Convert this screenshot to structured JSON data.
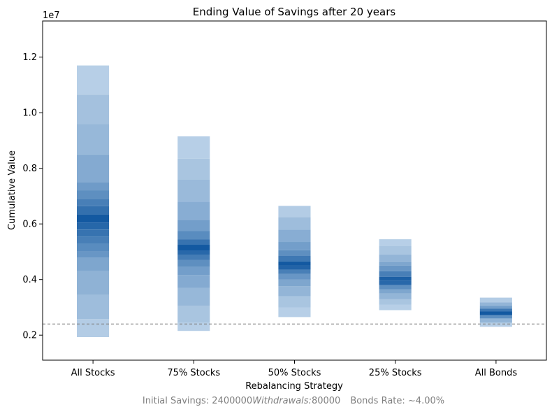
{
  "chart_data": {
    "type": "bar",
    "title": "Ending Value of Savings after 20 years",
    "xlabel": "Rebalancing Strategy",
    "ylabel": "Cumulative Value",
    "y_offset_label": "1e7",
    "ylim": [
      1.1,
      13.3
    ],
    "y_scale_factor": 10000000,
    "yticks": [
      0.2,
      0.4,
      0.6,
      0.8,
      1.0,
      1.2
    ],
    "ytick_labels": [
      "0.2",
      "0.4",
      "0.6",
      "0.8",
      "1.0",
      "1.2"
    ],
    "categories": [
      "All Stocks",
      "75% Stocks",
      "50% Stocks",
      "25% Stocks",
      "All Bonds"
    ],
    "reference_line": {
      "value": 2.4,
      "style": "dashed",
      "color": "#808080"
    },
    "footer": {
      "part1": "Initial Savings: 2400000",
      "part2": "Withdrawals:",
      "part3": "80000",
      "part4": "Bonds Rate: ~4.00%"
    },
    "series": [
      {
        "bands": [
          [
            1.93,
            2.58,
            0.2
          ],
          [
            2.58,
            3.45,
            0.3
          ],
          [
            3.45,
            4.3,
            0.37
          ],
          [
            4.3,
            4.8,
            0.45
          ],
          [
            4.8,
            5.0,
            0.55
          ],
          [
            5.0,
            5.3,
            0.62
          ],
          [
            5.3,
            5.55,
            0.7
          ],
          [
            5.55,
            5.8,
            0.78
          ],
          [
            5.8,
            6.05,
            0.86
          ],
          [
            6.05,
            6.35,
            0.95
          ],
          [
            6.35,
            6.65,
            0.8
          ],
          [
            6.65,
            6.9,
            0.7
          ],
          [
            6.9,
            7.2,
            0.6
          ],
          [
            7.2,
            7.5,
            0.52
          ],
          [
            7.5,
            8.5,
            0.42
          ],
          [
            8.5,
            9.6,
            0.33
          ],
          [
            9.6,
            10.65,
            0.27
          ],
          [
            10.65,
            11.7,
            0.18
          ]
        ]
      },
      {
        "bands": [
          [
            2.15,
            2.45,
            0.18
          ],
          [
            2.45,
            3.05,
            0.25
          ],
          [
            3.05,
            3.7,
            0.33
          ],
          [
            3.7,
            4.15,
            0.42
          ],
          [
            4.15,
            4.45,
            0.5
          ],
          [
            4.45,
            4.7,
            0.6
          ],
          [
            4.7,
            4.9,
            0.72
          ],
          [
            4.9,
            5.05,
            0.85
          ],
          [
            5.05,
            5.25,
            0.95
          ],
          [
            5.25,
            5.45,
            0.78
          ],
          [
            5.45,
            5.75,
            0.62
          ],
          [
            5.75,
            6.15,
            0.5
          ],
          [
            6.15,
            6.8,
            0.4
          ],
          [
            6.8,
            7.6,
            0.32
          ],
          [
            7.6,
            8.35,
            0.25
          ],
          [
            8.35,
            9.15,
            0.18
          ]
        ]
      },
      {
        "bands": [
          [
            2.65,
            3.0,
            0.18
          ],
          [
            3.0,
            3.4,
            0.25
          ],
          [
            3.4,
            3.75,
            0.35
          ],
          [
            3.75,
            4.0,
            0.45
          ],
          [
            4.0,
            4.2,
            0.55
          ],
          [
            4.2,
            4.35,
            0.7
          ],
          [
            4.35,
            4.5,
            0.88
          ],
          [
            4.5,
            4.65,
            0.95
          ],
          [
            4.65,
            4.85,
            0.75
          ],
          [
            4.85,
            5.05,
            0.6
          ],
          [
            5.05,
            5.35,
            0.5
          ],
          [
            5.35,
            5.8,
            0.4
          ],
          [
            5.8,
            6.25,
            0.3
          ],
          [
            6.25,
            6.65,
            0.2
          ]
        ]
      },
      {
        "bands": [
          [
            2.9,
            3.1,
            0.18
          ],
          [
            3.1,
            3.3,
            0.25
          ],
          [
            3.3,
            3.5,
            0.35
          ],
          [
            3.5,
            3.65,
            0.45
          ],
          [
            3.65,
            3.8,
            0.6
          ],
          [
            3.8,
            3.95,
            0.85
          ],
          [
            3.95,
            4.1,
            0.9
          ],
          [
            4.1,
            4.3,
            0.7
          ],
          [
            4.3,
            4.5,
            0.55
          ],
          [
            4.5,
            4.65,
            0.45
          ],
          [
            4.65,
            4.9,
            0.35
          ],
          [
            4.9,
            5.2,
            0.25
          ],
          [
            5.2,
            5.45,
            0.18
          ]
        ]
      },
      {
        "bands": [
          [
            2.3,
            2.45,
            0.18
          ],
          [
            2.45,
            2.6,
            0.35
          ],
          [
            2.6,
            2.72,
            0.6
          ],
          [
            2.72,
            2.85,
            0.95
          ],
          [
            2.85,
            2.95,
            0.75
          ],
          [
            2.95,
            3.05,
            0.5
          ],
          [
            3.05,
            3.18,
            0.35
          ],
          [
            3.18,
            3.35,
            0.2
          ]
        ]
      }
    ]
  }
}
